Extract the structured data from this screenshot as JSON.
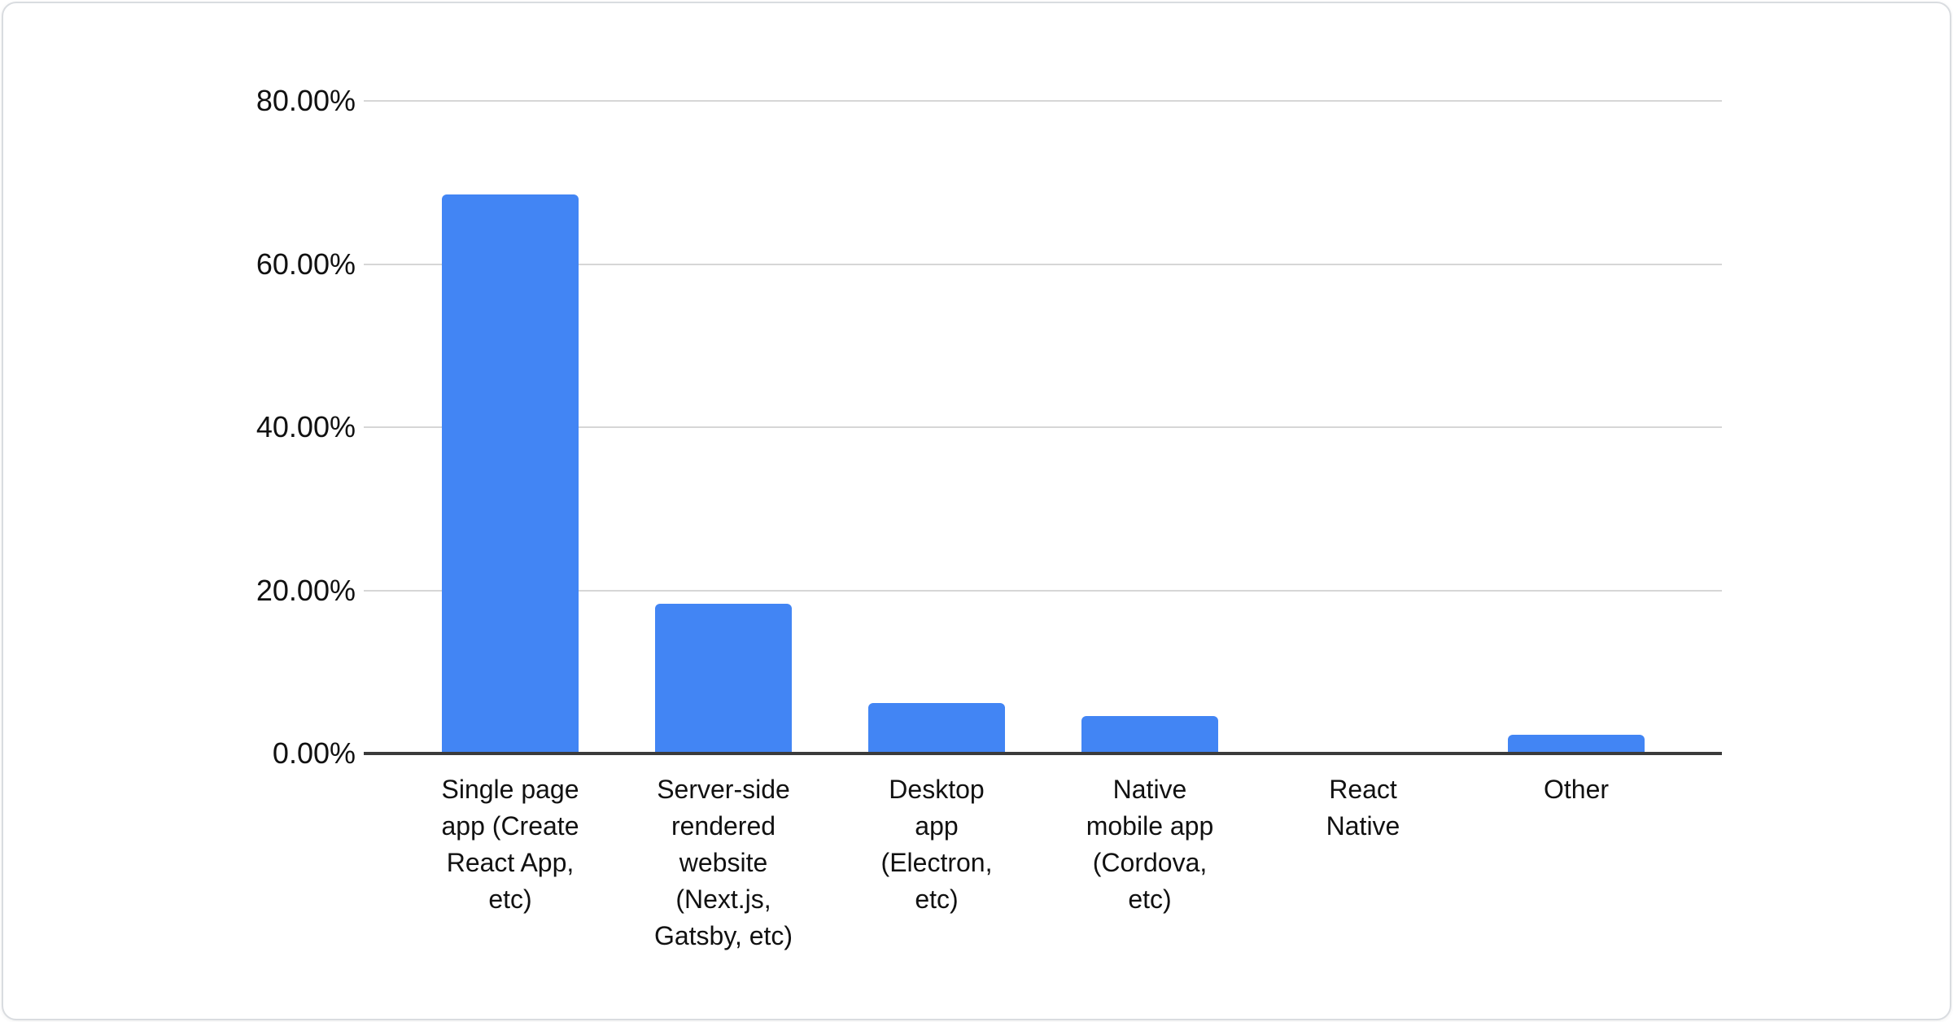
{
  "window": {
    "background": "#ffffff",
    "card_border_color": "#d9dce0"
  },
  "chart_data": {
    "type": "bar",
    "title": "",
    "xlabel": "",
    "ylabel": "",
    "categories": [
      "Single page app (Create React App, etc)",
      "Server-side rendered website (Next.js, Gatsby, etc)",
      "Desktop app (Electron, etc)",
      "Native mobile app (Cordova, etc)",
      "React Native",
      "Other"
    ],
    "category_lines": [
      [
        "Single page",
        "app (Create",
        "React App,",
        "etc)"
      ],
      [
        "Server-side",
        "rendered",
        "website",
        "(Next.js,",
        "Gatsby, etc)"
      ],
      [
        "Desktop",
        "app",
        "(Electron,",
        "etc)"
      ],
      [
        "Native",
        "mobile app",
        "(Cordova,",
        "etc)"
      ],
      [
        "React",
        "Native"
      ],
      [
        "Other"
      ]
    ],
    "category_slugs": [
      "single-page-app",
      "server-side-rendered-website",
      "desktop-app",
      "native-mobile-app",
      "react-native",
      "other"
    ],
    "values": [
      68.5,
      18.4,
      6.2,
      4.6,
      0,
      2.3
    ],
    "unit": "%",
    "ylim": [
      0,
      80
    ],
    "yticks": [
      0,
      20,
      40,
      60,
      80
    ],
    "ytick_labels": [
      "0.00%",
      "20.00%",
      "40.00%",
      "60.00%",
      "80.00%"
    ],
    "grid": true,
    "legend": "none",
    "bar_color": "#4285f4",
    "gridline_color": "#d6d6d6",
    "axis_line_color": "#3b3b3b",
    "text_color": "#111111"
  }
}
